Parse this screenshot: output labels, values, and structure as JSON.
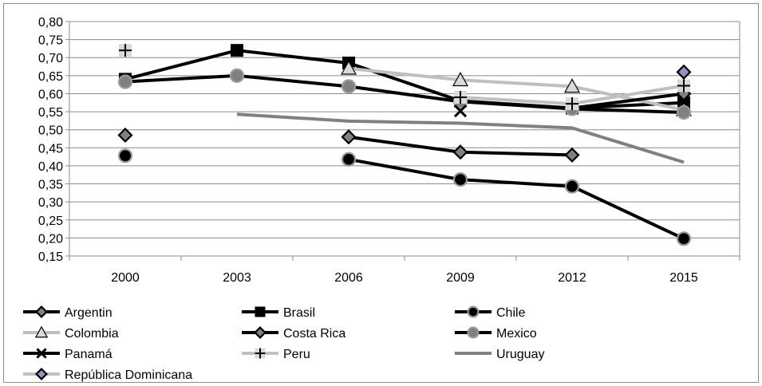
{
  "chart_data": {
    "type": "line",
    "title": "",
    "xlabel": "",
    "ylabel": "",
    "categories": [
      "2000",
      "2003",
      "2006",
      "2009",
      "2012",
      "2015"
    ],
    "ylim": [
      0.15,
      0.8
    ],
    "yticks": [
      "0,80",
      "0,75",
      "0,70",
      "0,65",
      "0,60",
      "0,55",
      "0,50",
      "0,45",
      "0,40",
      "0,35",
      "0,30",
      "0,25",
      "0,20",
      "0,15"
    ],
    "grid": "horizontal",
    "legend_position": "bottom",
    "series": [
      {
        "name": "Argentin",
        "values": [
          0.485,
          null,
          0.48,
          0.438,
          0.43,
          null
        ],
        "color": "#000000",
        "marker": "diamond",
        "marker_fill": "#808080"
      },
      {
        "name": "Brasil",
        "values": [
          0.64,
          0.72,
          0.685,
          0.58,
          0.56,
          0.575
        ],
        "color": "#000000",
        "marker": "square",
        "marker_fill": "#000000"
      },
      {
        "name": "Chile",
        "values": [
          0.428,
          null,
          0.418,
          0.362,
          0.343,
          0.198
        ],
        "color": "#000000",
        "marker": "circle",
        "marker_fill": "#000000"
      },
      {
        "name": "Colombia",
        "values": [
          null,
          null,
          0.67,
          0.638,
          0.62,
          0.555
        ],
        "color": "#bfbfbf",
        "marker": "triangle",
        "marker_fill": "#d9d9d9"
      },
      {
        "name": "Costa Rica",
        "values": [
          null,
          null,
          null,
          null,
          0.56,
          0.6
        ],
        "color": "#000000",
        "marker": "diamond",
        "marker_fill": "#808080"
      },
      {
        "name": "Mexico",
        "values": [
          0.633,
          0.65,
          0.62,
          0.578,
          0.558,
          0.548
        ],
        "color": "#000000",
        "marker": "circle",
        "marker_fill": "#808080"
      },
      {
        "name": "Panamá",
        "values": [
          null,
          null,
          null,
          0.552,
          null,
          null
        ],
        "color": "#000000",
        "marker": "x",
        "marker_fill": "#000000"
      },
      {
        "name": "Peru",
        "values": [
          0.72,
          null,
          null,
          0.59,
          0.572,
          0.622
        ],
        "color": "#c0c0c0",
        "marker": "plus",
        "marker_fill": "#000000"
      },
      {
        "name": "Uruguay",
        "values": [
          null,
          0.543,
          0.524,
          0.518,
          0.505,
          0.41
        ],
        "color": "#808080",
        "marker": "none",
        "marker_fill": "#808080"
      },
      {
        "name": "República Dominicana",
        "values": [
          null,
          null,
          null,
          null,
          null,
          0.66
        ],
        "color": "#c0c0c0",
        "marker": "diamond",
        "marker_fill": "#9b8fc7"
      }
    ]
  }
}
